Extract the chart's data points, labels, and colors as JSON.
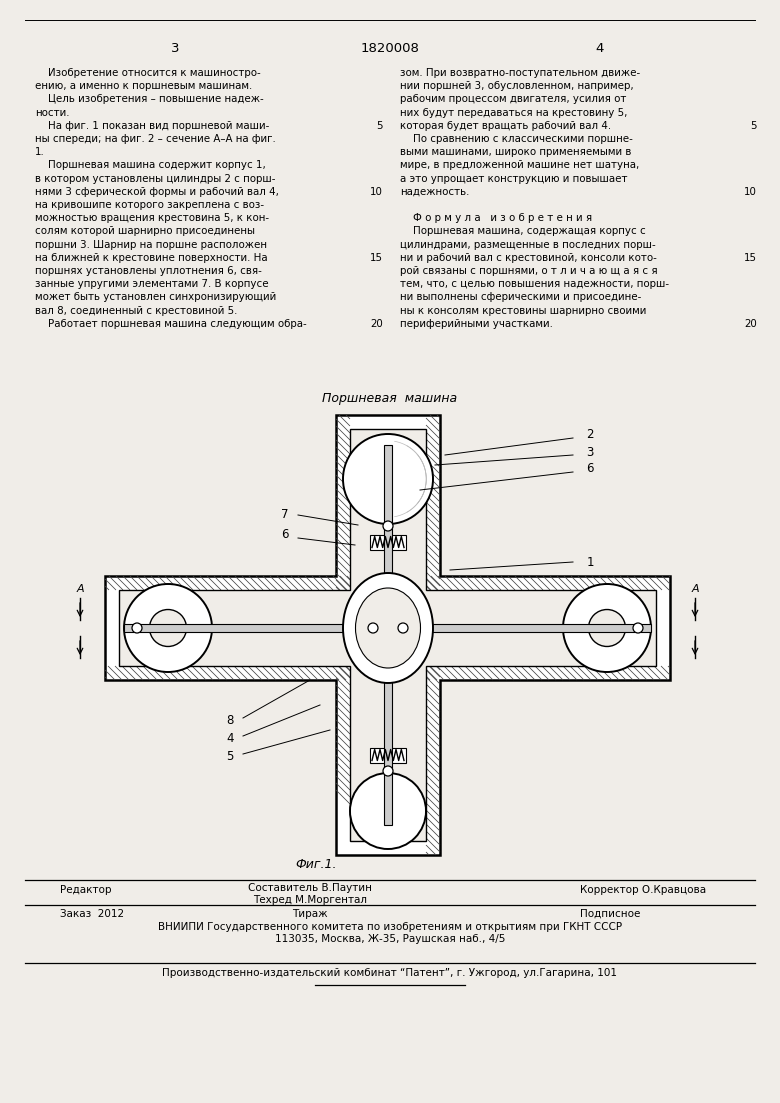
{
  "page_number_left": "3",
  "patent_number": "1820008",
  "page_number_right": "4",
  "left_col_lines": [
    "    Изобретение относится к машиностро-",
    "ению, а именно к поршневым машинам.",
    "    Цель изобретения – повышение надеж-",
    "ности.",
    "    На фиг. 1 показан вид поршневой маши-",
    "ны спереди; на фиг. 2 – сечение А–А на фиг.",
    "1.",
    "    Поршневая машина содержит корпус 1,",
    "в котором установлены цилиндры 2 с порш-",
    "нями 3 сферической формы и рабочий вал 4,",
    "на кривошипе которого закреплена с воз-",
    "можностью вращения крестовина 5, к кон-",
    "солям которой шарнирно присоединены",
    "поршни 3. Шарнир на поршне расположен",
    "на ближней к крестовине поверхности. На",
    "поршнях установлены уплотнения 6, свя-",
    "занные упругими элементами 7. В корпусе",
    "может быть установлен синхронизирующий",
    "вал 8, соединенный с крестовиной 5.",
    "    Работает поршневая машина следующим обра-"
  ],
  "right_col_lines": [
    "зом. При возвратно-поступательном движе-",
    "нии поршней 3, обусловленном, например,",
    "рабочим процессом двигателя, усилия от",
    "них будут передаваться на крестовину 5,",
    "которая будет вращать рабочий вал 4.",
    "    По сравнению с классическими поршне-",
    "выми машинами, широко применяемыми в",
    "мире, в предложенной машине нет шатуна,",
    "а это упрощает конструкцию и повышает",
    "надежность.",
    "",
    "    Ф о р м у л а   и з о б р е т е н и я",
    "    Поршневая машина, содержащая корпус с",
    "цилиндрами, размещенные в последних порш-",
    "ни и рабочий вал с крестовиной, консоли кото-",
    "рой связаны с поршнями, о т л и ч а ю щ а я с я",
    "тем, что, с целью повышения надежности, порш-",
    "ни выполнены сферическими и присоедине-",
    "ны к консолям крестовины шарнирно своими",
    "периферийными участками."
  ],
  "line_numbers": [
    5,
    10,
    15,
    20
  ],
  "diagram_title": "Поршневая  машина",
  "fig_label": "Фиг.1.",
  "footer_editor": "Редактор",
  "footer_composer": "Составитель В.Паутин",
  "footer_techred": "Техред М.Моргентал",
  "footer_corrector": "Корректор О.Кравцова",
  "footer_order": "Заказ  2012",
  "footer_tirazh": "Тираж",
  "footer_podpisnoe": "Подписное",
  "footer_vniiipi": "ВНИИПИ Государственного комитета по изобретениям и открытиям при ГКНТ СССР",
  "footer_address": "113035, Москва, Ж-35, Раушская наб., 4/5",
  "footer_patent": "Производственно-издательский комбинат “Патент”, г. Ужгород, ул.Гагарина, 101",
  "bg_color": "#f0ede8"
}
